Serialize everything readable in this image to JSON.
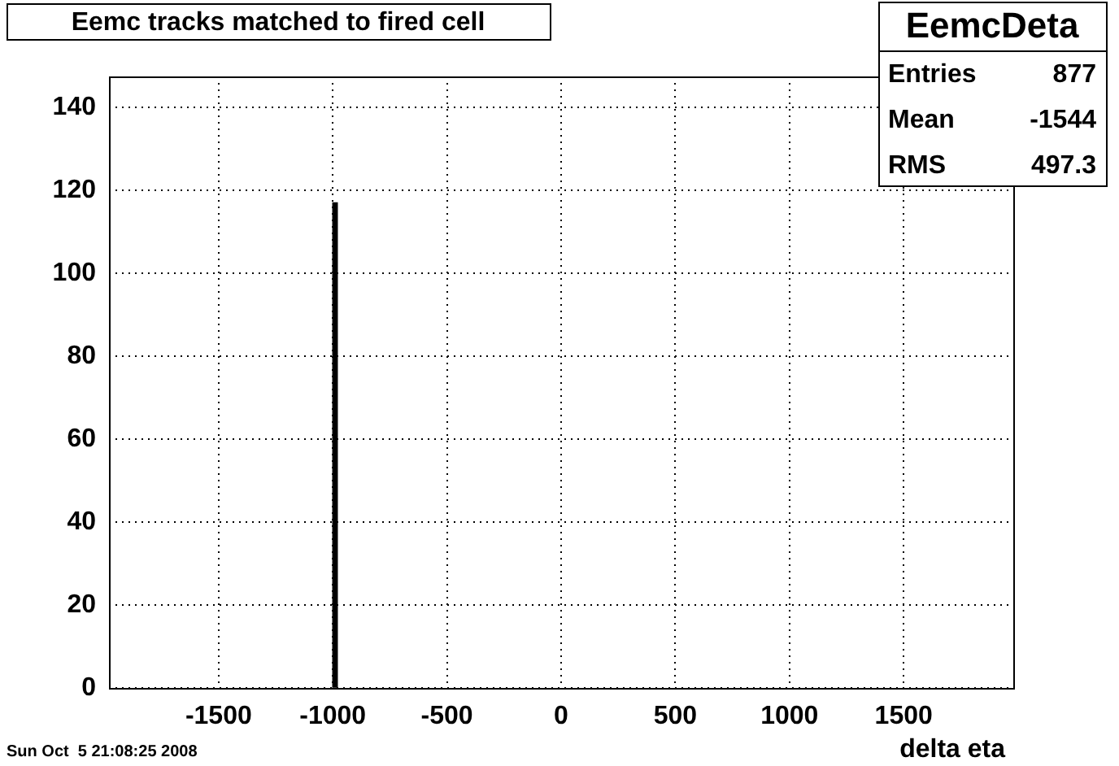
{
  "chart_data": {
    "type": "histogram",
    "title": "Eemc tracks matched to fired cell",
    "xlabel": "delta eta",
    "bins": [
      -1000,
      -980
    ],
    "values": [
      117
    ],
    "color": "#000000",
    "xlim": [
      -1980,
      1980
    ],
    "xticks": [
      -1500,
      -1000,
      -500,
      0,
      500,
      1000,
      1500
    ],
    "ylim": [
      0,
      147.5
    ],
    "yticks": [
      0,
      20,
      40,
      60,
      80,
      100,
      120,
      140
    ],
    "grid": true,
    "legend": false,
    "annotations": [
      "EemcDeta",
      "Entries",
      "877",
      "Mean",
      "-1544",
      "RMS",
      "497.3",
      "Sun Oct  5 21:08:25 2008"
    ]
  }
}
